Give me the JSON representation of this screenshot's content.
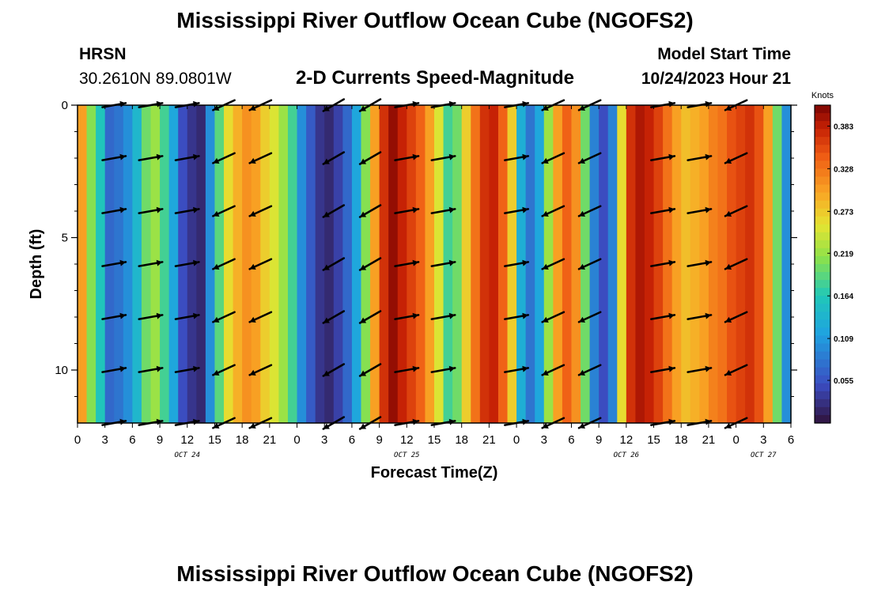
{
  "title": "Mississippi River Outflow Ocean Cube (NGOFS2)",
  "title_bottom": "Mississippi River Outflow Ocean Cube (NGOFS2)",
  "station": {
    "name": "HRSN",
    "coords": "30.2610N  89.0801W"
  },
  "model": {
    "label": "Model Start Time",
    "time": "10/24/2023 Hour 21"
  },
  "chart_data": {
    "type": "heatmap",
    "title": "2-D Currents Speed-Magnitude",
    "xlabel": "Forecast Time(Z)",
    "ylabel": "Depth (ft)",
    "x_range_hours": [
      0,
      78
    ],
    "y_range_ft": [
      0,
      12
    ],
    "x_tick_labels": [
      "0",
      "3",
      "6",
      "9",
      "12",
      "15",
      "18",
      "21",
      "0",
      "3",
      "6",
      "9",
      "12",
      "15",
      "18",
      "21",
      "0",
      "3",
      "6",
      "9",
      "12",
      "15",
      "18",
      "21",
      "0",
      "3",
      "6"
    ],
    "date_labels": [
      {
        "label": "OCT 24",
        "hour": 12
      },
      {
        "label": "OCT 25",
        "hour": 36
      },
      {
        "label": "OCT 26",
        "hour": 60
      },
      {
        "label": "OCT 27",
        "hour": 75
      }
    ],
    "y_ticks": [
      {
        "label": "0",
        "value": 0
      },
      {
        "label": "5",
        "value": 5
      },
      {
        "label": "10",
        "value": 10
      }
    ],
    "colorbar": {
      "title": "Knots",
      "min": 0.0,
      "max": 0.41,
      "tick_labels": [
        "0.383",
        "0.328",
        "0.273",
        "0.219",
        "0.164",
        "0.109",
        "0.055"
      ],
      "tick_values": [
        0.383,
        0.328,
        0.273,
        0.219,
        0.164,
        0.109,
        0.055
      ]
    },
    "speed_by_hour": [
      {
        "hour": 0,
        "speed": 0.3
      },
      {
        "hour": 1,
        "speed": 0.21
      },
      {
        "hour": 2,
        "speed": 0.16
      },
      {
        "hour": 3,
        "speed": 0.07
      },
      {
        "hour": 4,
        "speed": 0.08
      },
      {
        "hour": 5,
        "speed": 0.1
      },
      {
        "hour": 6,
        "speed": 0.14
      },
      {
        "hour": 7,
        "speed": 0.2
      },
      {
        "hour": 8,
        "speed": 0.22
      },
      {
        "hour": 9,
        "speed": 0.18
      },
      {
        "hour": 10,
        "speed": 0.12
      },
      {
        "hour": 11,
        "speed": 0.05
      },
      {
        "hour": 12,
        "speed": 0.03
      },
      {
        "hour": 13,
        "speed": 0.02
      },
      {
        "hour": 14,
        "speed": 0.1
      },
      {
        "hour": 15,
        "speed": 0.19
      },
      {
        "hour": 16,
        "speed": 0.26
      },
      {
        "hour": 17,
        "speed": 0.29
      },
      {
        "hour": 18,
        "speed": 0.31
      },
      {
        "hour": 19,
        "speed": 0.3
      },
      {
        "hour": 20,
        "speed": 0.27
      },
      {
        "hour": 21,
        "speed": 0.25
      },
      {
        "hour": 22,
        "speed": 0.22
      },
      {
        "hour": 23,
        "speed": 0.18
      },
      {
        "hour": 24,
        "speed": 0.1
      },
      {
        "hour": 25,
        "speed": 0.06
      },
      {
        "hour": 26,
        "speed": 0.03
      },
      {
        "hour": 27,
        "speed": 0.02
      },
      {
        "hour": 28,
        "speed": 0.04
      },
      {
        "hour": 29,
        "speed": 0.07
      },
      {
        "hour": 30,
        "speed": 0.12
      },
      {
        "hour": 31,
        "speed": 0.21
      },
      {
        "hour": 32,
        "speed": 0.3
      },
      {
        "hour": 33,
        "speed": 0.37
      },
      {
        "hour": 34,
        "speed": 0.4
      },
      {
        "hour": 35,
        "speed": 0.38
      },
      {
        "hour": 36,
        "speed": 0.36
      },
      {
        "hour": 37,
        "speed": 0.34
      },
      {
        "hour": 38,
        "speed": 0.3
      },
      {
        "hour": 39,
        "speed": 0.25
      },
      {
        "hour": 40,
        "speed": 0.18
      },
      {
        "hour": 41,
        "speed": 0.2
      },
      {
        "hour": 42,
        "speed": 0.27
      },
      {
        "hour": 43,
        "speed": 0.33
      },
      {
        "hour": 44,
        "speed": 0.37
      },
      {
        "hour": 45,
        "speed": 0.38
      },
      {
        "hour": 46,
        "speed": 0.34
      },
      {
        "hour": 47,
        "speed": 0.27
      },
      {
        "hour": 48,
        "speed": 0.13
      },
      {
        "hour": 49,
        "speed": 0.08
      },
      {
        "hour": 50,
        "speed": 0.12
      },
      {
        "hour": 51,
        "speed": 0.22
      },
      {
        "hour": 52,
        "speed": 0.3
      },
      {
        "hour": 53,
        "speed": 0.34
      },
      {
        "hour": 54,
        "speed": 0.31
      },
      {
        "hour": 55,
        "speed": 0.2
      },
      {
        "hour": 56,
        "speed": 0.09
      },
      {
        "hour": 57,
        "speed": 0.05
      },
      {
        "hour": 58,
        "speed": 0.09
      },
      {
        "hour": 59,
        "speed": 0.26
      },
      {
        "hour": 60,
        "speed": 0.37
      },
      {
        "hour": 61,
        "speed": 0.39
      },
      {
        "hour": 62,
        "speed": 0.38
      },
      {
        "hour": 63,
        "speed": 0.36
      },
      {
        "hour": 64,
        "speed": 0.33
      },
      {
        "hour": 65,
        "speed": 0.3
      },
      {
        "hour": 66,
        "speed": 0.28
      },
      {
        "hour": 67,
        "speed": 0.29
      },
      {
        "hour": 68,
        "speed": 0.3
      },
      {
        "hour": 69,
        "speed": 0.32
      },
      {
        "hour": 70,
        "speed": 0.33
      },
      {
        "hour": 71,
        "speed": 0.35
      },
      {
        "hour": 72,
        "speed": 0.36
      },
      {
        "hour": 73,
        "speed": 0.37
      },
      {
        "hour": 74,
        "speed": 0.35
      },
      {
        "hour": 75,
        "speed": 0.3
      },
      {
        "hour": 76,
        "speed": 0.2
      },
      {
        "hour": 77,
        "speed": 0.1
      }
    ],
    "arrow_times_hours": [
      4,
      8,
      12,
      16,
      20,
      28,
      32,
      36,
      40,
      48,
      52,
      56,
      64,
      68,
      72
    ],
    "arrow_depths_ft": [
      0,
      2,
      4,
      6,
      8,
      10,
      12
    ],
    "arrow_direction_deg": [
      10,
      10,
      10,
      -155,
      -155,
      -150,
      -150,
      10,
      10,
      10,
      -155,
      -155,
      10,
      10,
      -155
    ]
  }
}
